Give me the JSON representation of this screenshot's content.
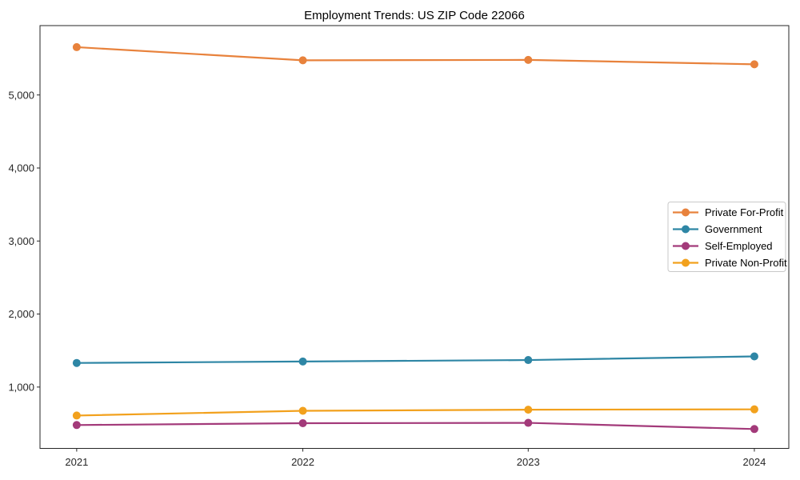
{
  "chart_data": {
    "type": "line",
    "title": "Employment Trends: US ZIP Code 22066",
    "x": [
      "2021",
      "2022",
      "2023",
      "2024"
    ],
    "series": [
      {
        "name": "Private For-Profit",
        "color": "#e8823c",
        "values": [
          5655,
          5475,
          5480,
          5420
        ]
      },
      {
        "name": "Government",
        "color": "#2e86a5",
        "values": [
          1330,
          1350,
          1370,
          1420
        ]
      },
      {
        "name": "Self-Employed",
        "color": "#a33a7a",
        "values": [
          480,
          505,
          510,
          425
        ]
      },
      {
        "name": "Private Non-Profit",
        "color": "#f2a11d",
        "values": [
          610,
          675,
          690,
          695
        ]
      }
    ],
    "yticks": [
      {
        "value": 1000,
        "label": "1,000"
      },
      {
        "value": 2000,
        "label": "2,000"
      },
      {
        "value": 3000,
        "label": "3,000"
      },
      {
        "value": 4000,
        "label": "4,000"
      },
      {
        "value": 5000,
        "label": "5,000"
      }
    ],
    "ylim": [
      160,
      5950
    ],
    "xlabel": "",
    "ylabel": "",
    "grid": false,
    "legend_position": "right",
    "axis_color": "#262626",
    "tick_label_color": "#262626",
    "legend_border_color": "#c9c9c9",
    "background_color": "#ffffff"
  }
}
